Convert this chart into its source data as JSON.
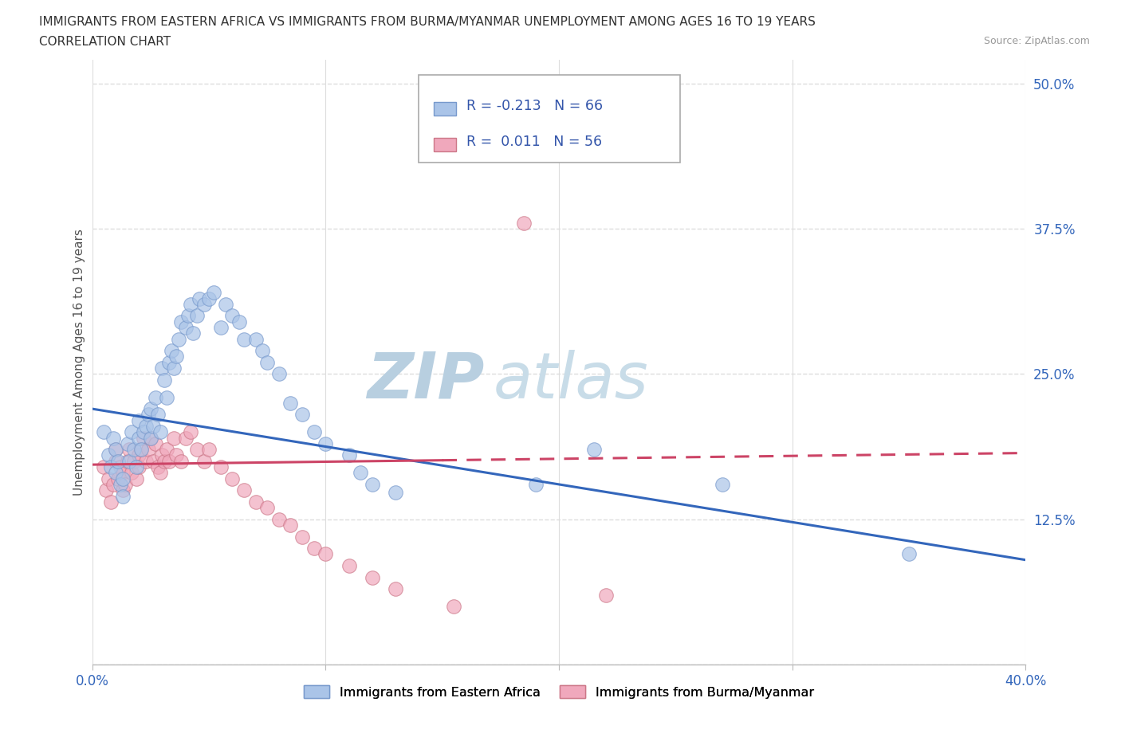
{
  "title_line1": "IMMIGRANTS FROM EASTERN AFRICA VS IMMIGRANTS FROM BURMA/MYANMAR UNEMPLOYMENT AMONG AGES 16 TO 19 YEARS",
  "title_line2": "CORRELATION CHART",
  "source_text": "Source: ZipAtlas.com",
  "ylabel": "Unemployment Among Ages 16 to 19 years",
  "xlim": [
    0.0,
    0.4
  ],
  "ylim": [
    0.0,
    0.52
  ],
  "x_ticks": [
    0.0,
    0.1,
    0.2,
    0.3,
    0.4
  ],
  "y_ticks": [
    0.0,
    0.125,
    0.25,
    0.375,
    0.5
  ],
  "gridline_color": "#dddddd",
  "background_color": "#ffffff",
  "watermark_zip": "ZIP",
  "watermark_atlas": "atlas",
  "watermark_color": "#ccd9e8",
  "series1_color": "#aac4e8",
  "series1_edge_color": "#7799cc",
  "series1_label": "Immigrants from Eastern Africa",
  "series1_R": "-0.213",
  "series1_N": "66",
  "series1_line_color": "#3366bb",
  "series2_color": "#f0a8bc",
  "series2_edge_color": "#cc7788",
  "series2_label": "Immigrants from Burma/Myanmar",
  "series2_R": "0.011",
  "series2_N": "56",
  "series2_line_color": "#cc4466",
  "legend_color": "#3355aa",
  "scatter1_x": [
    0.005,
    0.007,
    0.008,
    0.009,
    0.01,
    0.01,
    0.011,
    0.012,
    0.013,
    0.013,
    0.015,
    0.016,
    0.017,
    0.018,
    0.019,
    0.02,
    0.02,
    0.021,
    0.022,
    0.023,
    0.024,
    0.025,
    0.025,
    0.026,
    0.027,
    0.028,
    0.029,
    0.03,
    0.031,
    0.032,
    0.033,
    0.034,
    0.035,
    0.036,
    0.037,
    0.038,
    0.04,
    0.041,
    0.042,
    0.043,
    0.045,
    0.046,
    0.048,
    0.05,
    0.052,
    0.055,
    0.057,
    0.06,
    0.063,
    0.065,
    0.07,
    0.073,
    0.075,
    0.08,
    0.085,
    0.09,
    0.095,
    0.1,
    0.11,
    0.115,
    0.12,
    0.13,
    0.19,
    0.215,
    0.27,
    0.35
  ],
  "scatter1_y": [
    0.2,
    0.18,
    0.17,
    0.195,
    0.185,
    0.165,
    0.175,
    0.155,
    0.16,
    0.145,
    0.19,
    0.175,
    0.2,
    0.185,
    0.17,
    0.21,
    0.195,
    0.185,
    0.2,
    0.205,
    0.215,
    0.195,
    0.22,
    0.205,
    0.23,
    0.215,
    0.2,
    0.255,
    0.245,
    0.23,
    0.26,
    0.27,
    0.255,
    0.265,
    0.28,
    0.295,
    0.29,
    0.3,
    0.31,
    0.285,
    0.3,
    0.315,
    0.31,
    0.315,
    0.32,
    0.29,
    0.31,
    0.3,
    0.295,
    0.28,
    0.28,
    0.27,
    0.26,
    0.25,
    0.225,
    0.215,
    0.2,
    0.19,
    0.18,
    0.165,
    0.155,
    0.148,
    0.155,
    0.185,
    0.155,
    0.095
  ],
  "scatter2_x": [
    0.005,
    0.006,
    0.007,
    0.008,
    0.009,
    0.01,
    0.01,
    0.011,
    0.012,
    0.013,
    0.013,
    0.014,
    0.015,
    0.016,
    0.017,
    0.018,
    0.019,
    0.02,
    0.02,
    0.021,
    0.022,
    0.023,
    0.024,
    0.025,
    0.026,
    0.027,
    0.028,
    0.029,
    0.03,
    0.031,
    0.032,
    0.033,
    0.035,
    0.036,
    0.038,
    0.04,
    0.042,
    0.045,
    0.048,
    0.05,
    0.055,
    0.06,
    0.065,
    0.07,
    0.075,
    0.08,
    0.085,
    0.09,
    0.095,
    0.1,
    0.11,
    0.12,
    0.13,
    0.155,
    0.185,
    0.22
  ],
  "scatter2_y": [
    0.17,
    0.15,
    0.16,
    0.14,
    0.155,
    0.175,
    0.185,
    0.16,
    0.17,
    0.15,
    0.165,
    0.155,
    0.175,
    0.185,
    0.165,
    0.175,
    0.16,
    0.18,
    0.17,
    0.185,
    0.195,
    0.175,
    0.185,
    0.195,
    0.175,
    0.19,
    0.17,
    0.165,
    0.18,
    0.175,
    0.185,
    0.175,
    0.195,
    0.18,
    0.175,
    0.195,
    0.2,
    0.185,
    0.175,
    0.185,
    0.17,
    0.16,
    0.15,
    0.14,
    0.135,
    0.125,
    0.12,
    0.11,
    0.1,
    0.095,
    0.085,
    0.075,
    0.065,
    0.05,
    0.38,
    0.06
  ],
  "trendline1_x": [
    0.0,
    0.4
  ],
  "trendline1_y": [
    0.22,
    0.09
  ],
  "trendline2_x": [
    0.0,
    0.4
  ],
  "trendline2_y": [
    0.172,
    0.182
  ]
}
